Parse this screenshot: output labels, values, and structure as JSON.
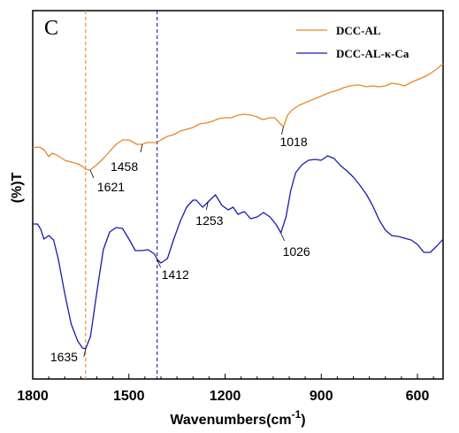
{
  "chart_data": {
    "type": "line",
    "panel_label": "C",
    "xlabel_main": "Wavenumbers(cm",
    "xlabel_sup": "-1",
    "xlabel_close": ")",
    "ylabel": "(%)T",
    "xlim": [
      1800,
      520
    ],
    "x_ticks": [
      1800,
      1500,
      1200,
      900,
      600
    ],
    "x_tick_labels": [
      "1800",
      "1500",
      "1200",
      "900",
      "600"
    ],
    "y_axis_values_shown": false,
    "reference_lines": [
      {
        "x": 1635,
        "color": "#E8882A"
      },
      {
        "x": 1412,
        "color": "#1A1AB0"
      }
    ],
    "legend": {
      "position": "top-right"
    },
    "series": [
      {
        "name": "DCC-AL",
        "color": "#E8882A",
        "points": [
          [
            1800,
            167
          ],
          [
            1780,
            166
          ],
          [
            1765,
            169
          ],
          [
            1750,
            177
          ],
          [
            1740,
            173
          ],
          [
            1725,
            175
          ],
          [
            1700,
            181
          ],
          [
            1680,
            183
          ],
          [
            1660,
            185
          ],
          [
            1645,
            188
          ],
          [
            1635,
            191
          ],
          [
            1621,
            192
          ],
          [
            1600,
            186
          ],
          [
            1580,
            179
          ],
          [
            1560,
            171
          ],
          [
            1540,
            163
          ],
          [
            1520,
            158
          ],
          [
            1500,
            158
          ],
          [
            1490,
            160
          ],
          [
            1475,
            163
          ],
          [
            1458,
            163
          ],
          [
            1445,
            161
          ],
          [
            1430,
            161
          ],
          [
            1412,
            161
          ],
          [
            1400,
            158
          ],
          [
            1380,
            154
          ],
          [
            1360,
            152
          ],
          [
            1340,
            148
          ],
          [
            1320,
            146
          ],
          [
            1300,
            144
          ],
          [
            1280,
            140
          ],
          [
            1260,
            139
          ],
          [
            1240,
            137
          ],
          [
            1220,
            134
          ],
          [
            1200,
            133
          ],
          [
            1180,
            133
          ],
          [
            1160,
            130
          ],
          [
            1140,
            129
          ],
          [
            1120,
            130
          ],
          [
            1100,
            132
          ],
          [
            1090,
            134
          ],
          [
            1080,
            135
          ],
          [
            1060,
            133
          ],
          [
            1045,
            133
          ],
          [
            1030,
            139
          ],
          [
            1018,
            143
          ],
          [
            1005,
            130
          ],
          [
            990,
            124
          ],
          [
            970,
            119
          ],
          [
            950,
            116
          ],
          [
            930,
            113
          ],
          [
            910,
            110
          ],
          [
            890,
            107
          ],
          [
            870,
            104
          ],
          [
            850,
            102
          ],
          [
            830,
            99
          ],
          [
            810,
            97
          ],
          [
            790,
            96
          ],
          [
            780,
            96
          ],
          [
            760,
            98
          ],
          [
            740,
            97
          ],
          [
            720,
            98
          ],
          [
            700,
            97
          ],
          [
            680,
            94
          ],
          [
            660,
            95
          ],
          [
            640,
            97
          ],
          [
            620,
            93
          ],
          [
            600,
            90
          ],
          [
            580,
            87
          ],
          [
            560,
            83
          ],
          [
            540,
            78
          ],
          [
            520,
            72
          ]
        ],
        "annotations": [
          {
            "x": 1621,
            "label": "1621"
          },
          {
            "x": 1458,
            "label": "1458"
          },
          {
            "x": 1018,
            "label": "1018"
          }
        ]
      },
      {
        "name": "DCC-AL-κ-Ca",
        "color": "#1A1AB0",
        "points": [
          [
            1800,
            253
          ],
          [
            1785,
            253
          ],
          [
            1775,
            259
          ],
          [
            1765,
            270
          ],
          [
            1750,
            266
          ],
          [
            1735,
            271
          ],
          [
            1720,
            293
          ],
          [
            1700,
            332
          ],
          [
            1680,
            366
          ],
          [
            1660,
            385
          ],
          [
            1645,
            393
          ],
          [
            1635,
            394
          ],
          [
            1620,
            380
          ],
          [
            1600,
            330
          ],
          [
            1580,
            282
          ],
          [
            1560,
            262
          ],
          [
            1540,
            257
          ],
          [
            1520,
            258
          ],
          [
            1500,
            270
          ],
          [
            1480,
            283
          ],
          [
            1460,
            283
          ],
          [
            1440,
            282
          ],
          [
            1420,
            287
          ],
          [
            1412,
            293
          ],
          [
            1400,
            297
          ],
          [
            1380,
            292
          ],
          [
            1360,
            270
          ],
          [
            1340,
            250
          ],
          [
            1320,
            234
          ],
          [
            1300,
            226
          ],
          [
            1290,
            226
          ],
          [
            1270,
            234
          ],
          [
            1253,
            228
          ],
          [
            1230,
            220
          ],
          [
            1210,
            232
          ],
          [
            1190,
            237
          ],
          [
            1175,
            234
          ],
          [
            1160,
            242
          ],
          [
            1140,
            239
          ],
          [
            1120,
            247
          ],
          [
            1100,
            245
          ],
          [
            1080,
            240
          ],
          [
            1060,
            245
          ],
          [
            1040,
            254
          ],
          [
            1026,
            263
          ],
          [
            1010,
            245
          ],
          [
            995,
            215
          ],
          [
            980,
            195
          ],
          [
            960,
            186
          ],
          [
            940,
            181
          ],
          [
            920,
            180
          ],
          [
            900,
            181
          ],
          [
            880,
            176
          ],
          [
            860,
            179
          ],
          [
            840,
            187
          ],
          [
            820,
            193
          ],
          [
            800,
            200
          ],
          [
            780,
            209
          ],
          [
            760,
            219
          ],
          [
            740,
            232
          ],
          [
            720,
            248
          ],
          [
            700,
            260
          ],
          [
            680,
            266
          ],
          [
            660,
            267
          ],
          [
            640,
            269
          ],
          [
            620,
            271
          ],
          [
            600,
            276
          ],
          [
            580,
            285
          ],
          [
            560,
            285
          ],
          [
            540,
            278
          ],
          [
            520,
            270
          ]
        ],
        "annotations": [
          {
            "x": 1635,
            "label": "1635"
          },
          {
            "x": 1412,
            "label": "1412"
          },
          {
            "x": 1253,
            "label": "1253"
          },
          {
            "x": 1026,
            "label": "1026"
          }
        ]
      }
    ]
  }
}
